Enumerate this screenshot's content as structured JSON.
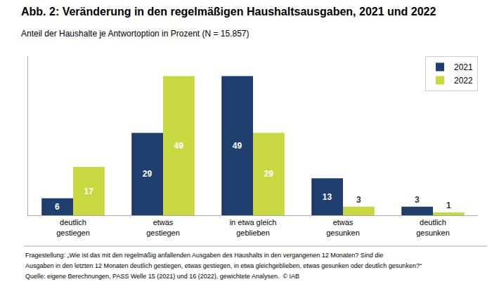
{
  "chart_data": {
    "type": "bar",
    "title": "Abb. 2: Veränderung in den regelmäßigen Haushaltsausgaben, 2021 und 2022",
    "subtitle": "Anteil der Haushalte je Antwortoption in Prozent (N = 15.857)",
    "categories": [
      "deutlich\ngestiegen",
      "etwas\ngestiegen",
      "in etwa gleich\ngeblieben",
      "etwas\ngesunken",
      "deutlich\ngesunken"
    ],
    "series": [
      {
        "name": "2021",
        "color": "#1F3F6E",
        "values": [
          6,
          29,
          49,
          13,
          3
        ]
      },
      {
        "name": "2022",
        "color": "#C8D840",
        "values": [
          17,
          49,
          29,
          3,
          1
        ]
      }
    ],
    "ylim": [
      0,
      56
    ],
    "grid": false,
    "legend": "upper right",
    "data_labels": true,
    "tick_labels": "x",
    "annotations": [
      "Fragestellung: „Wie ist das mit den regelmäßig anfallenden Ausgaben des Haushalts in den vergangenen 12 Monaten? Sind die",
      "Ausgaben in den letzten 12 Monaten deutlich gestiegen, etwas gestiegen, in etwa gleichgeblieben, etwas gesunken oder deutlich gesunken?“",
      "Quelle: eigene Berechnungen, PASS Welle 15 (2021) und 16 (2022), gewichtete Analysen.  © IAB"
    ]
  }
}
